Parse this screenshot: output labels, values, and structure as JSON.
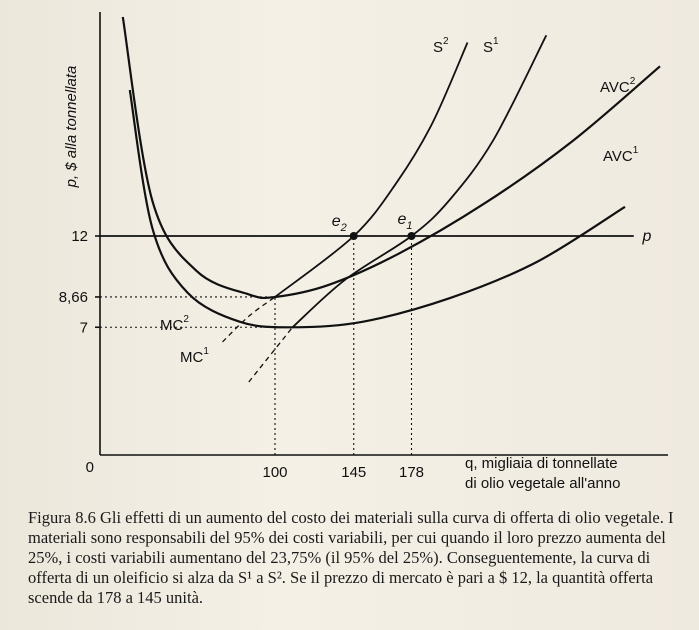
{
  "chart_data": {
    "type": "line",
    "xlabel": "q, migliaia di tonnellate di olio vegetale all'anno",
    "xlabel_lines": [
      "q, migliaia di tonnellate",
      "di olio vegetale all'anno"
    ],
    "ylabel": "p, $ alla tonnellata",
    "xlim": [
      0,
      320
    ],
    "ylim": [
      0,
      24
    ],
    "x_ticks": [
      {
        "value": 0,
        "label": "0"
      },
      {
        "value": 100,
        "label": "100"
      },
      {
        "value": 145,
        "label": "145"
      },
      {
        "value": 178,
        "label": "178"
      }
    ],
    "y_ticks": [
      {
        "value": 7,
        "label": "7"
      },
      {
        "value": 8.66,
        "label": "8,66"
      },
      {
        "value": 12,
        "label": "12"
      }
    ],
    "price_line": {
      "name": "p",
      "y": 12
    },
    "series": [
      {
        "name": "AVC¹",
        "label_base": "AVC",
        "label_sup": "1",
        "style": "solid",
        "x": [
          17,
          30,
          50,
          80,
          110,
          150,
          200,
          250,
          300
        ],
        "y": [
          20,
          12.4,
          8.9,
          7.3,
          7.0,
          7.3,
          8.6,
          10.6,
          13.6
        ]
      },
      {
        "name": "AVC²",
        "label_base": "AVC",
        "label_sup": "2",
        "style": "solid",
        "x": [
          13,
          30,
          55,
          85,
          100,
          130,
          170,
          220,
          270,
          320
        ],
        "y": [
          24,
          13.9,
          10.1,
          8.8,
          8.66,
          9.3,
          11.0,
          13.8,
          17.2,
          21.3
        ]
      },
      {
        "name": "MC¹",
        "label_base": "MC",
        "label_sup": "1",
        "style": "dashed-then-solid",
        "x": [
          85,
          110,
          140,
          178,
          200,
          225,
          255
        ],
        "y": [
          4.0,
          7.0,
          9.6,
          12.0,
          14.0,
          17.3,
          23.0
        ]
      },
      {
        "name": "MC²",
        "label_base": "MC",
        "label_sup": "2",
        "style": "dashed-then-solid",
        "x": [
          70,
          85,
          100,
          145,
          170,
          190,
          210
        ],
        "y": [
          6.2,
          7.6,
          8.66,
          12.0,
          15.0,
          18.2,
          22.6
        ]
      },
      {
        "name": "S¹",
        "label_base": "S",
        "label_sup": "1",
        "style": "solid",
        "x": [
          110,
          140,
          178,
          200,
          225,
          255
        ],
        "y": [
          7.0,
          9.6,
          12.0,
          14.0,
          17.3,
          23.0
        ]
      },
      {
        "name": "S²",
        "label_base": "S",
        "label_sup": "2",
        "style": "solid",
        "x": [
          100,
          145,
          170,
          190,
          210
        ],
        "y": [
          8.66,
          12.0,
          15.0,
          18.2,
          22.6
        ]
      }
    ],
    "points": [
      {
        "name": "e₂",
        "label_base": "e",
        "label_sub": "2",
        "x": 145,
        "y": 12
      },
      {
        "name": "e₁",
        "label_base": "e",
        "label_sub": "1",
        "x": 178,
        "y": 12
      }
    ],
    "grid": false
  },
  "caption": {
    "figure_number": "Figura 8.6",
    "text": "Gli effetti di un aumento del costo dei materiali sulla curva di offerta di olio vegetale. I materiali sono responsabili del 95% dei costi variabili, per cui quando il loro prezzo aumenta del 25%, i costi variabili aumentano del 23,75% (il 95% del 25%). Conseguentemente, la curva di offerta di un oleificio si alza da S¹ a S². Se il prezzo di mercato è pari a $ 12, la quantità offerta scende da 178 a 145 unità."
  }
}
